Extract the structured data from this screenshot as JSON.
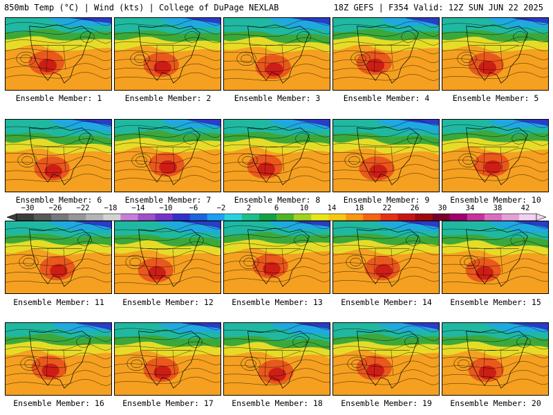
{
  "header": {
    "left": "850mb Temp (°C) | Wind (kts) | College of DuPage NEXLAB",
    "right": "18Z GEFS | F354 Valid: 12Z SUN JUN 22 2025"
  },
  "panels": [
    {
      "label": "Ensemble Member: 1"
    },
    {
      "label": "Ensemble Member: 2"
    },
    {
      "label": "Ensemble Member: 3"
    },
    {
      "label": "Ensemble Member: 4"
    },
    {
      "label": "Ensemble Member: 5"
    },
    {
      "label": "Ensemble Member: 6"
    },
    {
      "label": "Ensemble Member: 7"
    },
    {
      "label": "Ensemble Member: 8"
    },
    {
      "label": "Ensemble Member: 9"
    },
    {
      "label": "Ensemble Member: 10"
    },
    {
      "label": "Ensemble Member: 11"
    },
    {
      "label": "Ensemble Member: 12"
    },
    {
      "label": "Ensemble Member: 13"
    },
    {
      "label": "Ensemble Member: 14"
    },
    {
      "label": "Ensemble Member: 15"
    },
    {
      "label": "Ensemble Member: 16"
    },
    {
      "label": "Ensemble Member: 17"
    },
    {
      "label": "Ensemble Member: 18"
    },
    {
      "label": "Ensemble Member: 19"
    },
    {
      "label": "Ensemble Member: 20"
    }
  ],
  "colorbar": {
    "labels": [
      "−30",
      "−26",
      "−22",
      "−18",
      "−14",
      "−10",
      "−6",
      "−2",
      "2",
      "6",
      "10",
      "14",
      "18",
      "22",
      "26",
      "30",
      "34",
      "38",
      "42"
    ],
    "colors": [
      "#3c3c3c",
      "#595959",
      "#787878",
      "#969696",
      "#b4b4b4",
      "#d2d2d2",
      "#c87dd7",
      "#a050c8",
      "#7832c8",
      "#3232c8",
      "#1e64dc",
      "#1ea0f0",
      "#28d2dc",
      "#1ebe8c",
      "#14a046",
      "#50b428",
      "#a0d21e",
      "#e6e61e",
      "#f5c814",
      "#fa9614",
      "#f56414",
      "#e63214",
      "#c81414",
      "#a00a0a",
      "#780028",
      "#a0006e",
      "#c8329b",
      "#dc6ebe",
      "#e6a0d7",
      "#f0d2ee"
    ],
    "map_colors": {
      "cold": "#2a3cc8",
      "cool": "#20a8e0",
      "teal": "#20b8a0",
      "green": "#3ca83a",
      "yellow": "#e6dc28",
      "orange": "#f5a020",
      "hot": "#e8501c",
      "red": "#c81414",
      "contour": "#000000",
      "border": "#000000"
    }
  }
}
